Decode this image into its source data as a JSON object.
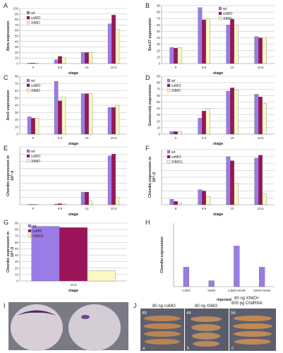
{
  "colors": {
    "wt": "#9b7be6",
    "coMO": "#9a1459",
    "XIMO": "#fdf8c2",
    "H_bar": "#9b7be6",
    "axis": "#888888",
    "grid": "#aaaaaa",
    "bar_edge": "#555555"
  },
  "chart_data": [
    {
      "panel": "A",
      "type": "bar",
      "categories": [
        "9",
        "9.5",
        "10",
        "10.5"
      ],
      "series": [
        {
          "name": "wt",
          "values": [
            1,
            7,
            20,
            72
          ]
        },
        {
          "name": "coMO",
          "values": [
            1,
            13,
            20,
            88
          ]
        },
        {
          "name": "XIMO",
          "values": [
            1,
            11,
            20,
            62
          ]
        }
      ],
      "ylabel": "Xbra expression",
      "xlabel": "stage",
      "ylim": [
        0,
        100
      ],
      "yticks": [
        "0",
        "10",
        "20",
        "30",
        "40",
        "50",
        "60",
        "70",
        "80",
        "90",
        "100"
      ],
      "legend": "top-left",
      "grid": true
    },
    {
      "panel": "B",
      "type": "bar",
      "categories": [
        "9",
        "9.5",
        "10",
        "10.5"
      ],
      "series": [
        {
          "name": "wt",
          "values": [
            25,
            87,
            60,
            42
          ]
        },
        {
          "name": "coMO",
          "values": [
            24,
            68,
            69,
            40
          ]
        },
        {
          "name": "XIMO",
          "values": [
            25,
            70,
            60,
            40
          ]
        }
      ],
      "ylabel": "Sox17 expression",
      "xlabel": "stage",
      "ylim": [
        0,
        90
      ],
      "yticks": [
        "0",
        "10",
        "20",
        "30",
        "40",
        "50",
        "60",
        "70",
        "80",
        "90"
      ],
      "legend": "top-right",
      "grid": true
    },
    {
      "panel": "C",
      "type": "bar",
      "categories": [
        "9",
        "9.5",
        "10",
        "10.5"
      ],
      "series": [
        {
          "name": "wt",
          "values": [
            24,
            73,
            56,
            37
          ]
        },
        {
          "name": "coMO",
          "values": [
            22,
            46,
            56,
            37
          ]
        },
        {
          "name": "XIMO",
          "values": [
            22,
            51,
            56,
            40
          ]
        }
      ],
      "ylabel": "Xnr3 expression",
      "xlabel": "stage",
      "ylim": [
        0,
        80
      ],
      "yticks": [
        "0",
        "10",
        "20",
        "30",
        "40",
        "50",
        "60",
        "70",
        "80"
      ],
      "legend": "top-left",
      "grid": true
    },
    {
      "panel": "D",
      "type": "bar",
      "categories": [
        "9",
        "9.5",
        "10",
        "10.5"
      ],
      "series": [
        {
          "name": "wt",
          "values": [
            4,
            25,
            67,
            62
          ]
        },
        {
          "name": "coMO",
          "values": [
            4,
            36,
            72,
            58
          ]
        },
        {
          "name": "XIMO",
          "values": [
            4,
            40,
            69,
            48
          ]
        }
      ],
      "ylabel": "Goosecoid expression",
      "xlabel": "stage",
      "ylim": [
        0,
        90
      ],
      "yticks": [
        "0",
        "10",
        "20",
        "30",
        "40",
        "50",
        "60",
        "70",
        "80",
        "90"
      ],
      "legend": "top-left",
      "grid": true
    },
    {
      "panel": "E",
      "type": "bar",
      "categories": [
        "9",
        "9.5",
        "10",
        "10.5"
      ],
      "series": [
        {
          "name": "wt",
          "values": [
            0.1,
            0.2,
            3.5,
            13.5
          ]
        },
        {
          "name": "coMO",
          "values": [
            0.1,
            0.3,
            3.5,
            14.0
          ]
        },
        {
          "name": "XIMO",
          "values": [
            0.1,
            0.2,
            1.0,
            2.0
          ]
        }
      ],
      "ylabel": "Chordin expression in",
      "ylabel2": "10^-3",
      "xlabel": "stage",
      "ylim": [
        0,
        16
      ],
      "yticks": [
        "",
        "",
        "",
        "",
        "",
        "",
        "",
        "",
        ""
      ],
      "legend": "top-left",
      "grid": true
    },
    {
      "panel": "F",
      "type": "bar",
      "categories": [
        "9",
        "9.5",
        "10",
        "10.5"
      ],
      "series": [
        {
          "name": "wt",
          "values": [
            8,
            22,
            70,
            68
          ]
        },
        {
          "name": "coMO",
          "values": [
            5,
            20,
            64,
            72
          ]
        },
        {
          "name": "XIMO1",
          "values": [
            3,
            12,
            31,
            16
          ]
        }
      ],
      "ylabel": "Chordin expression in",
      "ylabel2": "10^-3",
      "xlabel": "stage",
      "ylim": [
        0,
        80
      ],
      "yticks": [
        "",
        "",
        "",
        "",
        "",
        "",
        "",
        "",
        ""
      ],
      "legend": "top-left",
      "grid": true
    },
    {
      "panel": "G",
      "type": "bar",
      "categories": [
        "10.5"
      ],
      "series": [
        {
          "name": "wt",
          "values": [
            85
          ]
        },
        {
          "name": "coMO",
          "values": [
            83
          ]
        },
        {
          "name": "XIMO2",
          "values": [
            16
          ]
        }
      ],
      "ylabel": "Chordin expression in",
      "ylabel2": "10^-3",
      "xlabel": "stage",
      "ylim": [
        0,
        90
      ],
      "yticks": [
        "0",
        "10",
        "20",
        "30",
        "40",
        "50",
        "60",
        "70",
        "80",
        "90"
      ],
      "legend": "top-left",
      "grid": true
    },
    {
      "panel": "H",
      "type": "bar",
      "categories": [
        "coMO",
        "XIMO",
        "coMO+5mM",
        "XIMO+5mM"
      ],
      "series": [
        {
          "values": [
            0.92,
            0.28,
            1.92,
            0.92
          ]
        }
      ],
      "ylabel": "Chordin expression",
      "xlabel": "injected",
      "ylim": [
        0,
        3
      ],
      "yticks": [
        "",
        "",
        "",
        "",
        "",
        ""
      ],
      "grid": false
    }
  ],
  "panel_I": {
    "letter": "I"
  },
  "panel_J": {
    "letter": "J",
    "columns": [
      {
        "label": "80 ng coMO",
        "number": "48",
        "sub": "a"
      },
      {
        "label": "80 ng XIMO",
        "number": "44",
        "sub": "b"
      },
      {
        "label1": "80 ng XIMO+",
        "label2": "600 pg ChdRNA",
        "number": "56",
        "sub": "c"
      }
    ]
  }
}
